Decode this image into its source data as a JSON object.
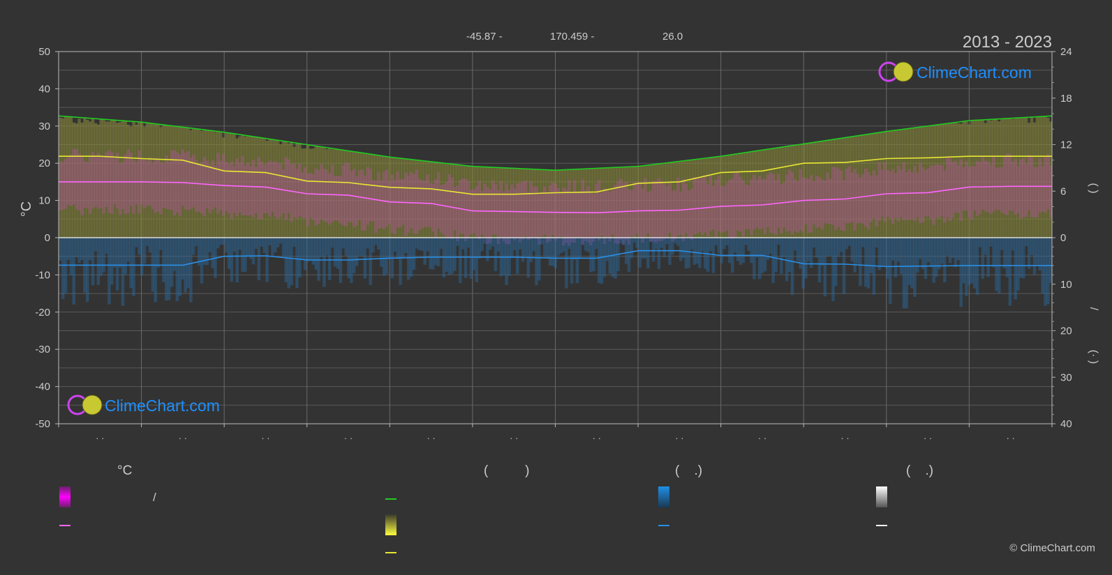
{
  "header": {
    "latitude": "-45.87 -",
    "longitude": "170.459 -",
    "elevation": "26.0",
    "period": "2013 - 2023"
  },
  "branding": {
    "logo_text": "ClimeChart.com",
    "copyright": "© ClimeChart.com"
  },
  "chart_data": {
    "type": "area",
    "x_months": 12,
    "left_axis": {
      "label": "°C",
      "ylim": [
        -50,
        50
      ],
      "ticks": [
        "50",
        "40",
        "30",
        "20",
        "10",
        "0",
        "-10",
        "-20",
        "-30",
        "-40",
        "-50"
      ]
    },
    "right_axis_top": {
      "label": "(   )",
      "ylim": [
        0,
        24
      ],
      "ticks": [
        "24",
        "18",
        "12",
        "6",
        "0"
      ]
    },
    "right_axis_bottom": {
      "label": "/",
      "label2": "(·   )",
      "ylim": [
        0,
        40
      ],
      "ticks": [
        "10",
        "20",
        "30",
        "40"
      ]
    },
    "month_labels": [
      "· ·",
      "· ·",
      "· ·",
      "· ·",
      "· ·",
      "· ·",
      "· ·",
      "· ·",
      "· ·",
      "· ·",
      "· ·",
      "· ·"
    ],
    "series": [
      {
        "key": "daylight",
        "color": "#22cc22",
        "x": [
          0,
          1,
          2,
          3,
          4,
          5,
          6,
          7,
          8,
          9,
          10,
          11,
          12
        ],
        "values": [
          15.7,
          14.9,
          13.6,
          12.0,
          10.4,
          9.2,
          8.7,
          9.2,
          10.5,
          12.1,
          13.7,
          15.1,
          15.7
        ]
      },
      {
        "key": "sunshine",
        "color": "#e8e832",
        "x": [
          0,
          0.5,
          1,
          1.5,
          2,
          2.5,
          3,
          3.5,
          4,
          4.5,
          5,
          5.5,
          6,
          6.5,
          7,
          7.5,
          8,
          8.5,
          9,
          9.5,
          10,
          10.5,
          11,
          11.5,
          12
        ],
        "values": [
          10.5,
          10.5,
          10.2,
          10.0,
          8.6,
          8.4,
          7.3,
          7.1,
          6.5,
          6.3,
          5.6,
          5.6,
          5.8,
          5.9,
          7.0,
          7.2,
          8.4,
          8.6,
          9.6,
          9.7,
          10.2,
          10.3,
          10.5,
          10.5,
          10.5
        ]
      },
      {
        "key": "avg_temp",
        "color": "#ff66ff",
        "x": [
          0,
          0.5,
          1,
          1.5,
          2,
          2.5,
          3,
          3.5,
          4,
          4.5,
          5,
          5.5,
          6,
          6.5,
          7,
          7.5,
          8,
          8.5,
          9,
          9.5,
          10,
          10.5,
          11,
          11.5,
          12
        ],
        "values": [
          15.0,
          15.0,
          15.0,
          14.8,
          14.0,
          13.6,
          11.8,
          11.4,
          9.6,
          9.2,
          7.2,
          7.0,
          6.8,
          6.7,
          7.2,
          7.4,
          8.4,
          8.8,
          10.0,
          10.4,
          11.8,
          12.1,
          13.6,
          13.8,
          13.8
        ]
      },
      {
        "key": "precip",
        "color": "#2a8fe6",
        "x": [
          0,
          0.5,
          1,
          1.5,
          2,
          2.5,
          3,
          3.5,
          4,
          4.5,
          5,
          5.5,
          6,
          6.5,
          7,
          7.5,
          8,
          8.5,
          9,
          9.5,
          10,
          10.5,
          11,
          11.5,
          12
        ],
        "values": [
          5.9,
          5.9,
          5.9,
          5.9,
          4.0,
          3.9,
          4.8,
          4.8,
          4.4,
          4.2,
          4.2,
          4.2,
          4.4,
          4.4,
          2.8,
          2.8,
          3.8,
          3.8,
          5.6,
          5.7,
          6.2,
          6.1,
          6.0,
          6.0,
          6.0
        ]
      }
    ],
    "bands": [
      {
        "key": "temp_range",
        "color": "#e040e0",
        "low": 4.0,
        "high": 26.0
      },
      {
        "key": "sunshine_band",
        "color": "#b8b840"
      }
    ]
  },
  "legend": {
    "col1": {
      "heading": "°C",
      "text": "/",
      "color_band": "#ff00ff",
      "color_line": "#ff66ff"
    },
    "col2": {
      "heading": "(          )",
      "color_line": "#22cc22",
      "color_band": "#e8e832",
      "color_line2": "#e8e832"
    },
    "col3": {
      "heading": "(    .)",
      "color_band": "#1e8fe6",
      "color_line": "#2a8fe6"
    },
    "col4": {
      "heading": "(    .)",
      "color_band": "#e6e6e6",
      "color_line": "#ffffff"
    }
  }
}
